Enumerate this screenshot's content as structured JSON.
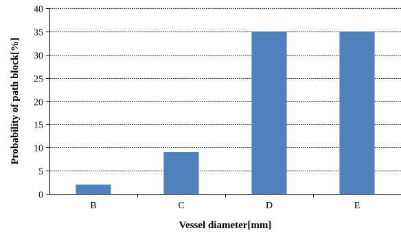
{
  "chart_data": {
    "type": "bar",
    "title": "",
    "xlabel": "Vessel diameter[mm]",
    "ylabel": "Probability of path block[%]",
    "categories": [
      "B",
      "C",
      "D",
      "E"
    ],
    "values": [
      2,
      9,
      35,
      35
    ],
    "ylim": [
      0,
      40
    ],
    "yticks": [
      0,
      5,
      10,
      15,
      20,
      25,
      30,
      35,
      40
    ],
    "grid": true,
    "legend": "none",
    "bar_color": "#4f81bd",
    "grid_color": "#000000"
  }
}
